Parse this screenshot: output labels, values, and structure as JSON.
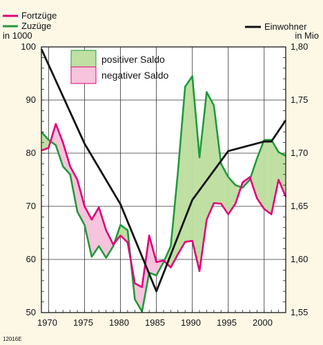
{
  "chart_data": {
    "type": "line",
    "legend_series": [
      {
        "label": "Fortzüge",
        "color": "#e0007a"
      },
      {
        "label": "Zuzüge",
        "color": "#1f9a3a"
      }
    ],
    "legend_right": {
      "label": "Einwohner",
      "color": "#111111"
    },
    "left_axis": {
      "unit": "in 1000",
      "ylim": [
        50,
        100
      ],
      "ticks": [
        "50",
        "60",
        "70",
        "80",
        "90",
        "100"
      ]
    },
    "right_axis": {
      "unit": "in Mio",
      "ylim": [
        1.55,
        1.8
      ],
      "ticks": [
        "1,55",
        "1,60",
        "1,65",
        "1,70",
        "1,75",
        "1,80"
      ]
    },
    "x_axis": {
      "xlim": [
        1969,
        2003
      ],
      "ticks": [
        "1970",
        "1975",
        "1980",
        "1985",
        "1990",
        "1995",
        "2000"
      ]
    },
    "saldo_legend": [
      {
        "label": "positiver Saldo",
        "color": "#bfdfa3"
      },
      {
        "label": "negativer Saldo",
        "color": "#f6c4dc"
      }
    ],
    "footnote": "12016E",
    "x": [
      1969,
      1970,
      1971,
      1972,
      1973,
      1974,
      1975,
      1976,
      1977,
      1978,
      1979,
      1980,
      1981,
      1982,
      1983,
      1984,
      1985,
      1986,
      1987,
      1988,
      1989,
      1990,
      1991,
      1992,
      1993,
      1994,
      1995,
      1996,
      1997,
      1998,
      1999,
      2000,
      2001,
      2002,
      2003
    ],
    "series": [
      {
        "name": "Fortzüge",
        "color": "#e0007a",
        "axis": "left",
        "values": [
          80.5,
          81.0,
          85.5,
          82.0,
          77.5,
          75.0,
          70.0,
          67.5,
          69.8,
          65.5,
          62.8,
          64.5,
          63.2,
          55.5,
          54.8,
          64.5,
          59.5,
          59.8,
          58.5,
          61.0,
          63.3,
          63.5,
          57.8,
          67.5,
          70.6,
          70.5,
          68.5,
          70.5,
          74.5,
          75.5,
          71.5,
          69.5,
          68.5,
          75.0,
          71.8
        ]
      },
      {
        "name": "Zuzüge",
        "color": "#1f9a3a",
        "axis": "left",
        "values": [
          84.0,
          82.5,
          81.5,
          77.5,
          76.0,
          69.0,
          66.5,
          60.5,
          62.5,
          60.3,
          62.5,
          66.5,
          65.5,
          52.5,
          50.2,
          57.5,
          57.0,
          59.5,
          62.5,
          76.5,
          92.5,
          94.5,
          79.2,
          91.5,
          89.0,
          78.0,
          75.5,
          74.0,
          73.5,
          75.0,
          79.0,
          82.5,
          82.5,
          80.2,
          79.5
        ]
      },
      {
        "name": "Einwohner",
        "color": "#111111",
        "axis": "right",
        "points": [
          [
            1969,
            1.798
          ],
          [
            1975,
            1.709
          ],
          [
            1980,
            1.652
          ],
          [
            1985,
            1.57
          ],
          [
            1990,
            1.656
          ],
          [
            1995,
            1.702
          ],
          [
            2000,
            1.711
          ],
          [
            2001,
            1.711
          ],
          [
            2003,
            1.731
          ]
        ]
      }
    ]
  }
}
